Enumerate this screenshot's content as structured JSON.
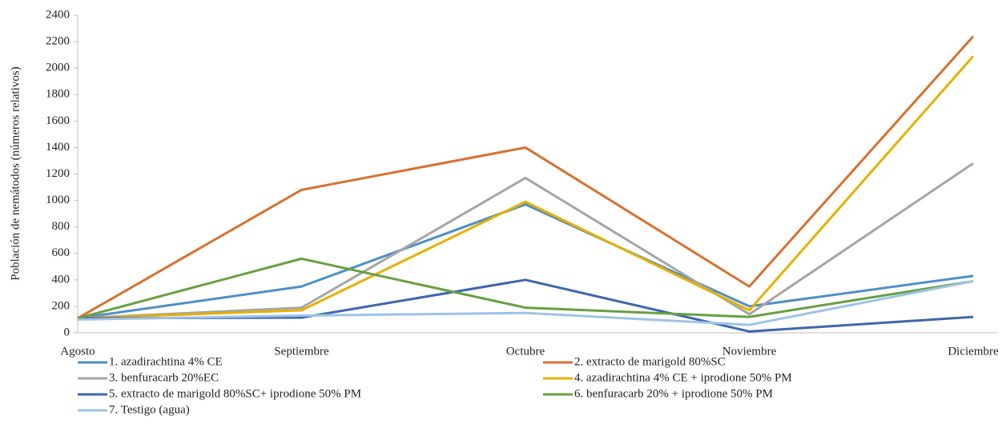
{
  "chart_data": {
    "type": "line",
    "y_label": "Población de nemátodos (números relativos)",
    "categories": [
      "Agosto",
      "Septiembre",
      "Octubre",
      "Noviembre",
      "Diciembre"
    ],
    "ylim": [
      0,
      2400
    ],
    "yticks": [
      0,
      200,
      400,
      600,
      800,
      1000,
      1200,
      1400,
      1600,
      1800,
      2000,
      2200,
      2400
    ],
    "grid": false,
    "legend": "bottom",
    "series": [
      {
        "name": "1. azadirachtina 4% CE",
        "color": "#4f8fc6",
        "values": [
          110,
          350,
          970,
          200,
          430
        ]
      },
      {
        "name": "2. extracto de marigold 80%SC",
        "color": "#d8702e",
        "values": [
          110,
          1080,
          1400,
          350,
          2240
        ]
      },
      {
        "name": "3. benfuracarb 20%EC",
        "color": "#a5a5a5",
        "values": [
          110,
          190,
          1170,
          140,
          1280
        ]
      },
      {
        "name": "4. azadirachtina 4% CE + iprodione 50% PM",
        "color": "#e6b000",
        "values": [
          110,
          170,
          990,
          170,
          2090
        ]
      },
      {
        "name": "5. extracto de marigold 80%SC+ iprodione 50% PM",
        "color": "#3e66ad",
        "values": [
          110,
          115,
          400,
          10,
          120
        ]
      },
      {
        "name": "6. benfuracarb 20% + iprodione 50% PM",
        "color": "#66a040",
        "values": [
          110,
          560,
          190,
          120,
          390
        ]
      },
      {
        "name": "7. Testigo (agua)",
        "color": "#9dc3e6",
        "values": [
          100,
          130,
          150,
          60,
          390
        ]
      }
    ]
  }
}
